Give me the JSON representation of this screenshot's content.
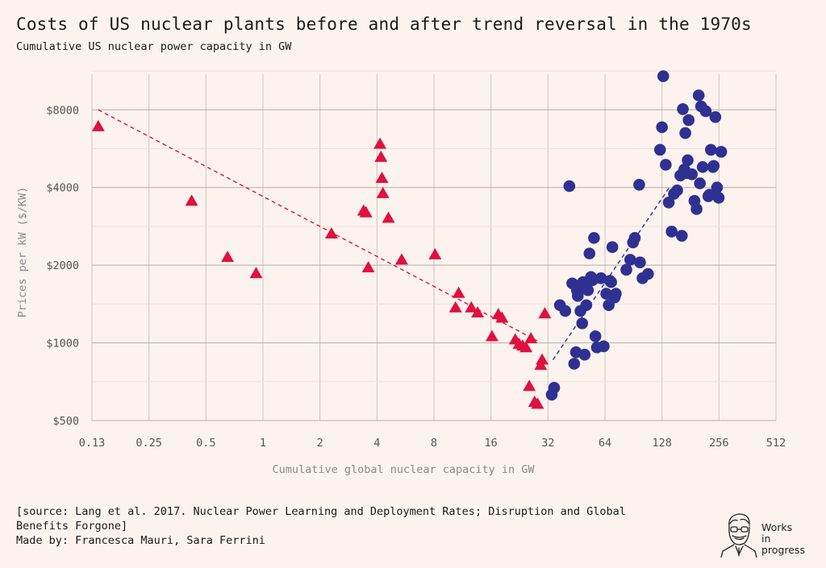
{
  "header": {
    "title": "Costs of US nuclear plants before and after trend reversal in the 1970s",
    "subtitle": "Cumulative US nuclear power capacity in GW"
  },
  "footer": {
    "source_line1": "[source: Lang et al. 2017. Nuclear Power Learning and Deployment Rates; Disruption and Global",
    "source_line2": "Benefits Forgone]",
    "credit": "Made by: Francesca Mauri, Sara Ferrini"
  },
  "logo": {
    "line1": "Works",
    "line2": "in",
    "line3": "progress"
  },
  "colors": {
    "pre_reversal": "#e0103f",
    "post_reversal": "#2e3192",
    "background": "#fdf3ee",
    "grid": "#cfc3bf",
    "axis_text": "#555555",
    "label_text": "#8a8a8a"
  },
  "chart_data": {
    "type": "scatter",
    "title": "Costs of US nuclear plants before and after trend reversal in the 1970s",
    "subtitle": "Cumulative US nuclear power capacity in GW",
    "xlabel": "Cumulative global nuclear capacity in GW",
    "ylabel": "Prices per kW ($/KW)",
    "x_scale": "log2",
    "y_scale": "log2",
    "xlim": [
      0.125,
      512
    ],
    "ylim": [
      500,
      11000
    ],
    "x_ticks": [
      0.13,
      0.25,
      0.5,
      1,
      2,
      4,
      8,
      16,
      32,
      64,
      128,
      256,
      512
    ],
    "x_tick_labels": [
      "0.13",
      "0.25",
      "0.5",
      "1",
      "2",
      "4",
      "8",
      "16",
      "32",
      "64",
      "128",
      "256",
      "512"
    ],
    "y_ticks": [
      500,
      1000,
      2000,
      4000,
      8000
    ],
    "y_tick_labels": [
      "$500",
      "$1000",
      "$2000",
      "$4000",
      "$8000"
    ],
    "grid": true,
    "series": [
      {
        "marker": "triangle",
        "color": "#e0103f",
        "points": [
          [
            0.135,
            6900
          ],
          [
            0.42,
            3550
          ],
          [
            0.65,
            2150
          ],
          [
            0.92,
            1860
          ],
          [
            2.3,
            2650
          ],
          [
            3.4,
            3250
          ],
          [
            3.5,
            3200
          ],
          [
            3.6,
            1960
          ],
          [
            4.15,
            5900
          ],
          [
            4.2,
            5250
          ],
          [
            4.25,
            4350
          ],
          [
            4.3,
            3800
          ],
          [
            4.6,
            3050
          ],
          [
            5.4,
            2100
          ],
          [
            8.1,
            2200
          ],
          [
            10.4,
            1370
          ],
          [
            10.8,
            1560
          ],
          [
            12.6,
            1370
          ],
          [
            13.6,
            1310
          ],
          [
            16.2,
            1060
          ],
          [
            17.5,
            1290
          ],
          [
            18.3,
            1250
          ],
          [
            21.5,
            1030
          ],
          [
            22.5,
            990
          ],
          [
            23.5,
            975
          ],
          [
            24.5,
            960
          ],
          [
            26,
            1040
          ],
          [
            25.5,
            680
          ],
          [
            27.2,
            590
          ],
          [
            28.2,
            580
          ],
          [
            29.3,
            820
          ],
          [
            29.8,
            860
          ],
          [
            30.8,
            1300
          ]
        ],
        "trend": [
          [
            0.135,
            8000
          ],
          [
            28,
            1020
          ]
        ]
      },
      {
        "marker": "circle",
        "color": "#2e3192",
        "points": [
          [
            33.5,
            630
          ],
          [
            34.5,
            670
          ],
          [
            37,
            1400
          ],
          [
            39.5,
            1330
          ],
          [
            41.5,
            4050
          ],
          [
            43,
            1700
          ],
          [
            44,
            830
          ],
          [
            45,
            920
          ],
          [
            45.5,
            1600
          ],
          [
            46,
            1520
          ],
          [
            47.5,
            1680
          ],
          [
            47.5,
            1330
          ],
          [
            48.5,
            1190
          ],
          [
            49,
            1720
          ],
          [
            50,
            900
          ],
          [
            51,
            1400
          ],
          [
            52,
            1600
          ],
          [
            53,
            2220
          ],
          [
            54,
            1800
          ],
          [
            55,
            1750
          ],
          [
            56,
            2550
          ],
          [
            57,
            1060
          ],
          [
            58,
            960
          ],
          [
            61,
            1780
          ],
          [
            63,
            970
          ],
          [
            65,
            1550
          ],
          [
            67,
            1400
          ],
          [
            68,
            1740
          ],
          [
            69,
            1720
          ],
          [
            70,
            2350
          ],
          [
            72,
            1500
          ],
          [
            73,
            1550
          ],
          [
            83,
            1920
          ],
          [
            87,
            2100
          ],
          [
            90,
            2450
          ],
          [
            92,
            2550
          ],
          [
            97,
            4100
          ],
          [
            98,
            2050
          ],
          [
            101,
            1780
          ],
          [
            108,
            1850
          ],
          [
            125,
            5600
          ],
          [
            128,
            6850
          ],
          [
            130,
            10800
          ],
          [
            134,
            4900
          ],
          [
            139,
            3500
          ],
          [
            144,
            2700
          ],
          [
            148,
            3780
          ],
          [
            154,
            3900
          ],
          [
            160,
            4450
          ],
          [
            163,
            2600
          ],
          [
            165,
            8050
          ],
          [
            168,
            4700
          ],
          [
            170,
            6500
          ],
          [
            173,
            4550
          ],
          [
            175,
            5100
          ],
          [
            177,
            7300
          ],
          [
            184,
            4500
          ],
          [
            190,
            3550
          ],
          [
            195,
            3300
          ],
          [
            200,
            9100
          ],
          [
            203,
            4150
          ],
          [
            206,
            8250
          ],
          [
            210,
            4800
          ],
          [
            218,
            7900
          ],
          [
            225,
            3700
          ],
          [
            228,
            3750
          ],
          [
            232,
            5600
          ],
          [
            238,
            4800
          ],
          [
            240,
            4850
          ],
          [
            245,
            7500
          ],
          [
            250,
            4000
          ],
          [
            255,
            3650
          ],
          [
            263,
            5500
          ]
        ],
        "trend": [
          [
            34,
            860
          ],
          [
            140,
            4000
          ]
        ]
      }
    ]
  }
}
